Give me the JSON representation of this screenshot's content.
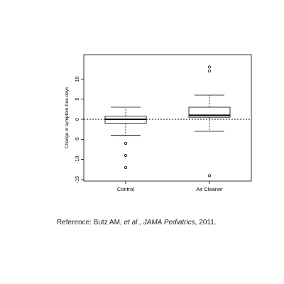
{
  "chart_data": {
    "type": "box",
    "title": "",
    "xlabel": "",
    "ylabel": "Change in symptom-free days",
    "ylim": [
      -15,
      15
    ],
    "yticks": [
      -15,
      -10,
      -5,
      0,
      5,
      10
    ],
    "reference_line": 0,
    "categories": [
      "Control",
      "Air Cleaner"
    ],
    "boxes": [
      {
        "name": "Control",
        "whisker_low": -4,
        "q1": -1,
        "median": 0,
        "q3": 0.8,
        "whisker_high": 3,
        "outliers": [
          -6,
          -9,
          -12
        ]
      },
      {
        "name": "Air Cleaner",
        "whisker_low": -3,
        "q1": 0.5,
        "median": 1,
        "q3": 3,
        "whisker_high": 6,
        "outliers": [
          12,
          13,
          -14
        ]
      }
    ],
    "colors": {
      "box_fill": "#ffffff",
      "stroke": "#000000"
    }
  },
  "reference": {
    "prefix": "Reference: Butz AM, ",
    "etal": "et al.",
    "middle": ", ",
    "journal": "JAMA Pediatrics",
    "suffix": ", 2011."
  }
}
